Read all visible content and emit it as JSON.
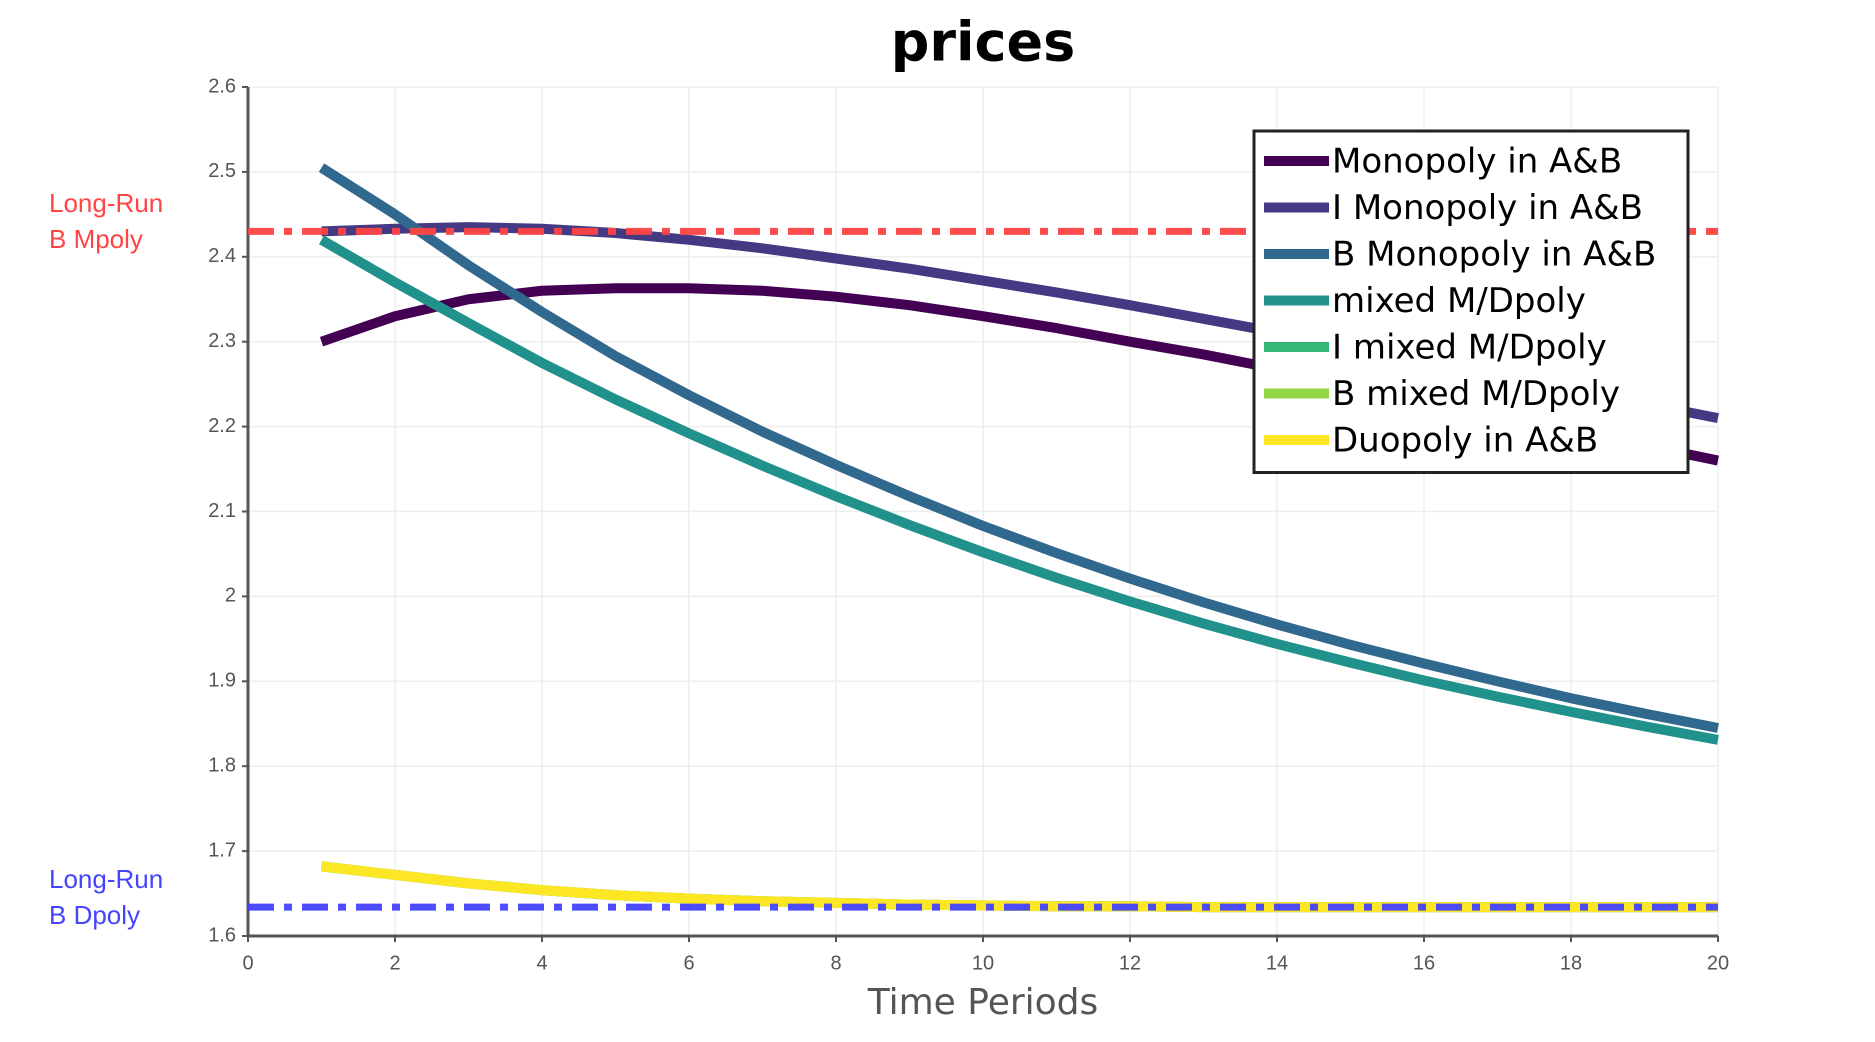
{
  "chart_data": {
    "type": "line",
    "title": "prices",
    "xlabel": "Time Periods",
    "x": [
      1,
      2,
      3,
      4,
      5,
      6,
      7,
      8,
      9,
      10,
      11,
      12,
      13,
      14,
      15,
      16,
      17,
      18,
      19,
      20
    ],
    "series": [
      {
        "name": "Monopoly in A&B",
        "color": "#440154",
        "values": [
          2.3,
          2.33,
          2.35,
          2.36,
          2.363,
          2.363,
          2.36,
          2.353,
          2.343,
          2.33,
          2.316,
          2.3,
          2.285,
          2.268,
          2.25,
          2.232,
          2.215,
          2.197,
          2.178,
          2.16
        ]
      },
      {
        "name": "I Monopoly in A&B",
        "color": "#443983",
        "values": [
          2.43,
          2.433,
          2.435,
          2.433,
          2.428,
          2.42,
          2.41,
          2.398,
          2.386,
          2.372,
          2.358,
          2.343,
          2.327,
          2.311,
          2.295,
          2.278,
          2.261,
          2.244,
          2.227,
          2.21
        ]
      },
      {
        "name": "B Monopoly in A&B",
        "color": "#31688e",
        "values": [
          2.505,
          2.45,
          2.39,
          2.335,
          2.283,
          2.237,
          2.194,
          2.155,
          2.118,
          2.083,
          2.051,
          2.021,
          1.993,
          1.967,
          1.943,
          1.921,
          1.9,
          1.88,
          1.862,
          1.845
        ]
      },
      {
        "name": "mixed M/Dpoly",
        "color": "#21918c",
        "values": [
          2.42,
          2.37,
          2.322,
          2.275,
          2.232,
          2.192,
          2.154,
          2.118,
          2.084,
          2.052,
          2.022,
          1.994,
          1.968,
          1.944,
          1.922,
          1.901,
          1.882,
          1.864,
          1.847,
          1.831
        ]
      },
      {
        "name": "I mixed M/Dpoly",
        "color": "#35b779",
        "values": [
          1.682,
          1.672,
          1.662,
          1.654,
          1.648,
          1.644,
          1.641,
          1.639,
          1.637,
          1.636,
          1.635,
          1.635,
          1.634,
          1.634,
          1.634,
          1.634,
          1.634,
          1.634,
          1.634,
          1.634
        ]
      },
      {
        "name": "B mixed M/Dpoly",
        "color": "#90d743",
        "values": [
          1.682,
          1.672,
          1.662,
          1.654,
          1.648,
          1.644,
          1.641,
          1.639,
          1.637,
          1.636,
          1.635,
          1.635,
          1.634,
          1.634,
          1.634,
          1.634,
          1.634,
          1.634,
          1.634,
          1.634
        ]
      },
      {
        "name": "Duopoly in A&B",
        "color": "#fde725",
        "values": [
          1.682,
          1.672,
          1.662,
          1.654,
          1.648,
          1.644,
          1.641,
          1.639,
          1.637,
          1.636,
          1.635,
          1.635,
          1.634,
          1.634,
          1.634,
          1.634,
          1.634,
          1.634,
          1.634,
          1.634
        ]
      }
    ],
    "hlines": [
      {
        "value": 2.43,
        "color": "#ff4444",
        "label": [
          "Long-Run",
          "B Mpoly"
        ]
      },
      {
        "value": 1.634,
        "color": "#4444ff",
        "label": [
          "Long-Run",
          "B Dpoly"
        ]
      }
    ],
    "xlim": [
      0,
      20
    ],
    "xticks": [
      0,
      2,
      4,
      6,
      8,
      10,
      12,
      14,
      16,
      18,
      20
    ],
    "ylim": [
      1.6,
      2.6
    ],
    "yticks": [
      1.6,
      1.7,
      1.8,
      1.9,
      2,
      2.1,
      2.2,
      2.3,
      2.4,
      2.5,
      2.6
    ],
    "grid": true,
    "legend": "upper right"
  }
}
